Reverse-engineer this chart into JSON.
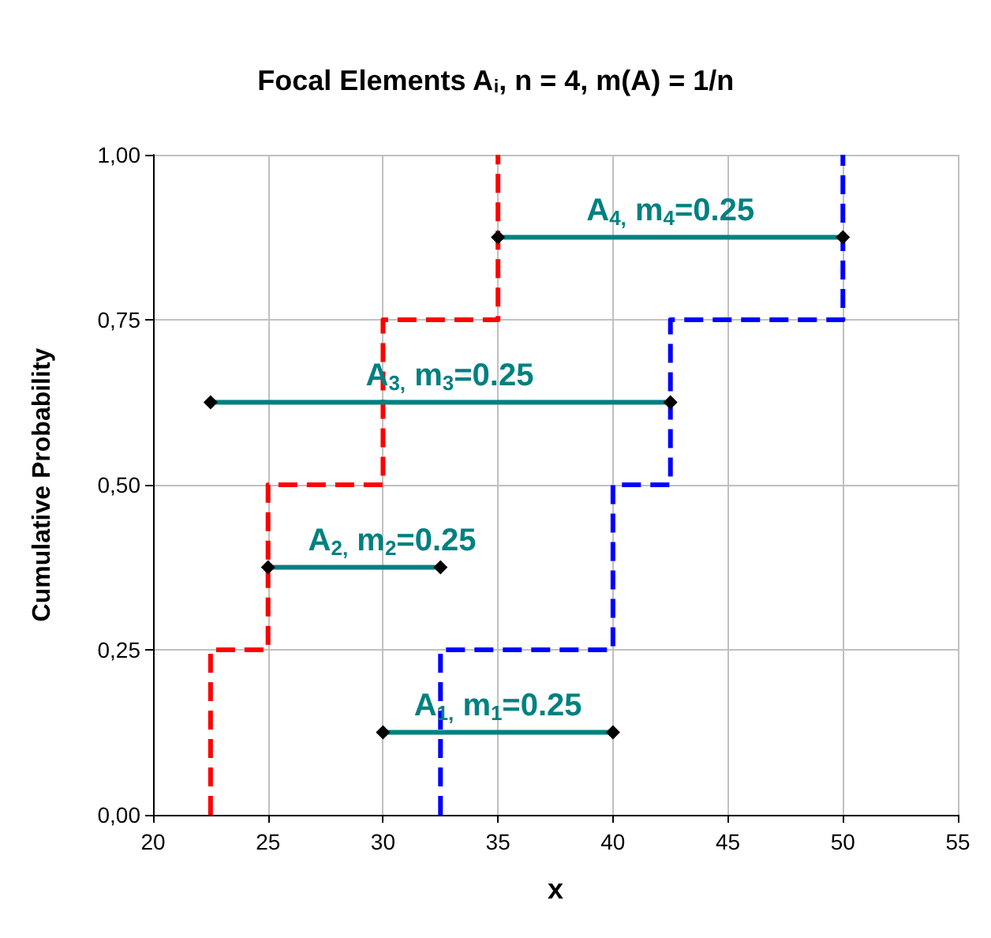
{
  "chart_data": {
    "type": "line",
    "title": "Focal Elements A$_{i}$, n = 4, m(A) = 1/n",
    "xlabel": "x",
    "ylabel": "Cumulative Probability",
    "xlim": [
      20,
      55
    ],
    "xticks": [
      20,
      25,
      30,
      35,
      40,
      45,
      50,
      55
    ],
    "ylim": [
      0,
      1
    ],
    "yticks": [
      {
        "value": 0,
        "label": "0,00"
      },
      {
        "value": 0.25,
        "label": "0,25"
      },
      {
        "value": 0.5,
        "label": "0,50"
      },
      {
        "value": 0.75,
        "label": "0,75"
      },
      {
        "value": 1,
        "label": "1,00"
      }
    ],
    "grid": true,
    "series": [
      {
        "color": "#ff0000",
        "marker": "none",
        "line_style": "dashed",
        "x": [
          22.5,
          22.5,
          25,
          25,
          30,
          30,
          35,
          35
        ],
        "values": [
          0,
          0.25,
          0.25,
          0.5,
          0.5,
          0.75,
          0.75,
          1
        ]
      },
      {
        "color": "#0000ff",
        "marker": "none",
        "line_style": "dashed",
        "x": [
          32.5,
          32.5,
          40,
          40,
          42.5,
          42.5,
          50,
          50
        ],
        "values": [
          0,
          0.25,
          0.25,
          0.5,
          0.5,
          0.75,
          0.75,
          1
        ]
      },
      {
        "color": "#008080",
        "marker": "diamond",
        "line_style": "solid",
        "x": [
          30,
          40
        ],
        "values": [
          0.125,
          0.125
        ]
      },
      {
        "color": "#008080",
        "marker": "diamond",
        "line_style": "solid",
        "x": [
          25,
          32.5
        ],
        "values": [
          0.375,
          0.375
        ]
      },
      {
        "color": "#008080",
        "marker": "diamond",
        "line_style": "solid",
        "x": [
          22.5,
          42.5
        ],
        "values": [
          0.625,
          0.625
        ]
      },
      {
        "color": "#008080",
        "marker": "diamond",
        "line_style": "solid",
        "x": [
          35,
          50
        ],
        "values": [
          0.875,
          0.875
        ]
      }
    ],
    "annotations": [
      {
        "text": "A$_{1,}$ m$_{1}$=0.25",
        "x": 35,
        "y": 0.125
      },
      {
        "text": "A$_{2,}$ m$_{2}$=0.25",
        "x": 30.4,
        "y": 0.375
      },
      {
        "text": "A$_{3,}$ m$_{3}$=0.25",
        "x": 32.9,
        "y": 0.625
      },
      {
        "text": "A$_{4,}$ m$_{4}$=0.25",
        "x": 42.5,
        "y": 0.875
      }
    ]
  }
}
